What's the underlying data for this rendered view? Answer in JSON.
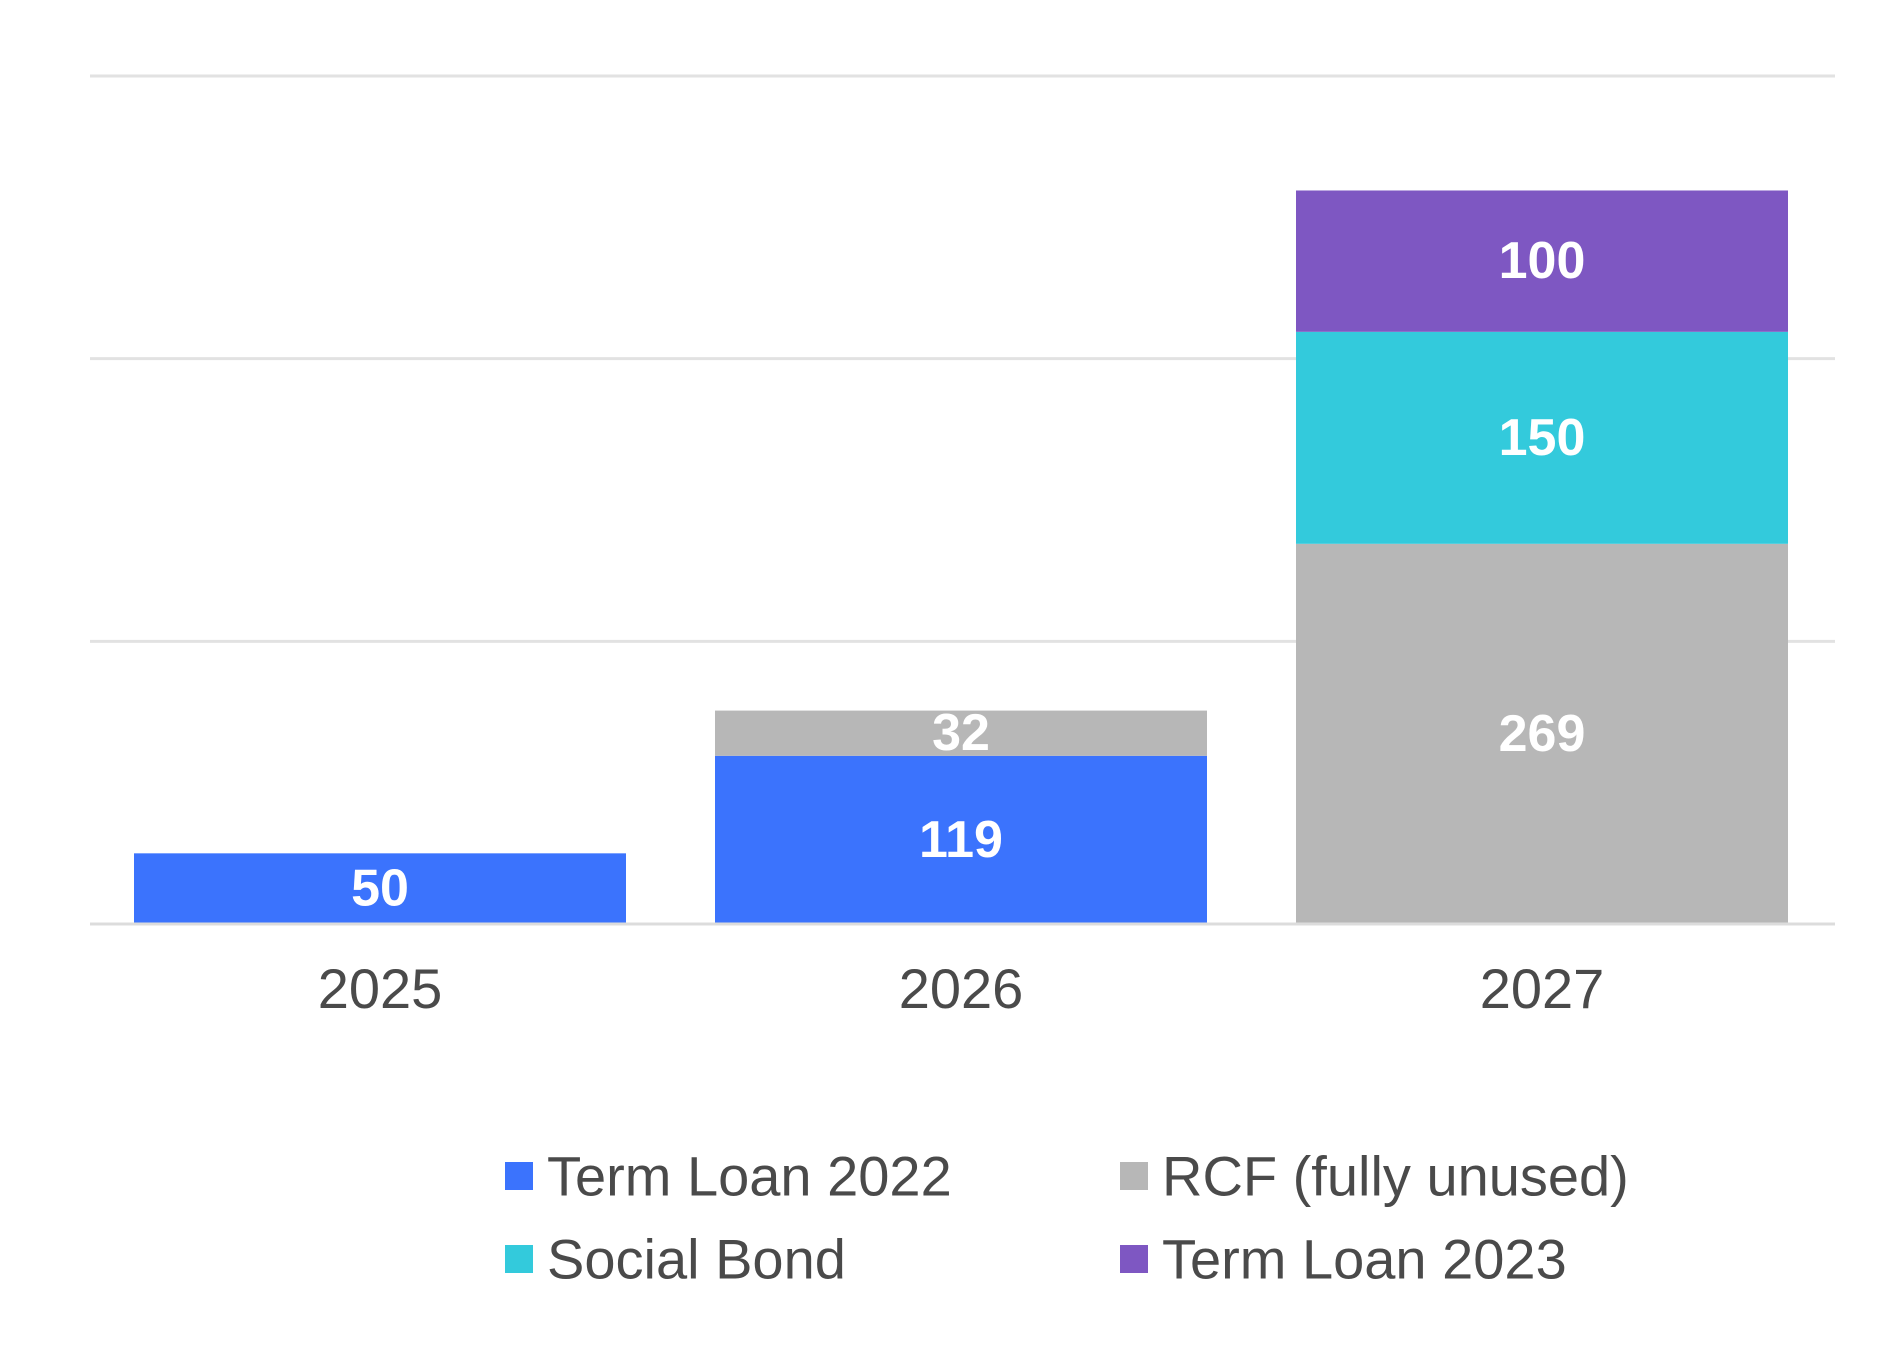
{
  "chart_data": {
    "type": "bar",
    "stacked": true,
    "categories": [
      "2025",
      "2026",
      "2027"
    ],
    "series": [
      {
        "name": "Term Loan 2022",
        "values": [
          50,
          119,
          0
        ],
        "color": "#3b73fd"
      },
      {
        "name": "RCF (fully unused)",
        "values": [
          0,
          32,
          269
        ],
        "color": "#b7b7b7"
      },
      {
        "name": "Social Bond",
        "values": [
          0,
          0,
          150
        ],
        "color": "#33cadc"
      },
      {
        "name": "Term Loan 2023",
        "values": [
          0,
          0,
          100
        ],
        "color": "#7e57c2"
      }
    ],
    "ylim": [
      0,
      600
    ],
    "gridlines": [
      0,
      200,
      400,
      600
    ],
    "grid": true,
    "legend_position": "bottom",
    "title": "",
    "xlabel": "",
    "ylabel": ""
  }
}
